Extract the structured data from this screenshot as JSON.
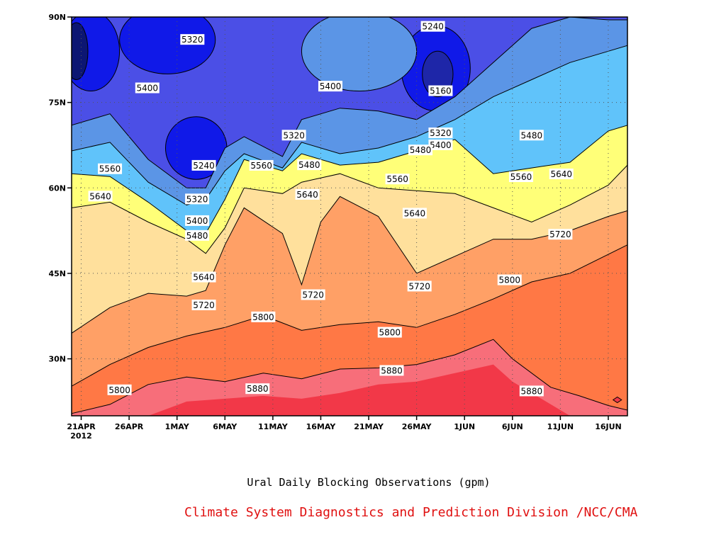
{
  "caption": "Ural Daily Blocking Observations (gpm)",
  "credit": "Climate System Diagnostics and Prediction Division /NCC/CMA",
  "colors": {
    "band_lt5160": "#0c1673",
    "band_5160_5240": "#1e26a8",
    "band_5240_5320": "#1019e8",
    "band_5320_5400": "#4b4fe6",
    "band_5400_5480": "#5b95e6",
    "band_5480_5560": "#60c3fa",
    "band_5560_5640": "#ffff78",
    "band_5640_5720": "#ffe09c",
    "band_5720_5800": "#ffa066",
    "band_5800_5880": "#ff7845",
    "band_5880_5960": "#f76e7a",
    "band_gt5960": "#f23848"
  },
  "chart_data": {
    "type": "heatmap",
    "title": "",
    "xlabel": "",
    "ylabel": "",
    "grid": true,
    "x_ticks": [
      "21APR",
      "26APR",
      "1MAY",
      "6MAY",
      "11MAY",
      "16MAY",
      "21MAY",
      "26MAY",
      "1JUN",
      "6JUN",
      "11JUN",
      "16JUN"
    ],
    "x_year_label": "2012",
    "y_ticks": [
      "30N",
      "45N",
      "60N",
      "75N",
      "90N"
    ],
    "y_range_deg": [
      20,
      90
    ],
    "x_range_days": [
      0,
      58
    ],
    "contour_levels": [
      5160,
      5240,
      5320,
      5400,
      5480,
      5560,
      5640,
      5720,
      5800,
      5880,
      5960
    ],
    "contour_lines": [
      {
        "level": 5880,
        "points": [
          [
            0,
            20.4
          ],
          [
            4,
            22.0
          ],
          [
            8,
            25.5
          ],
          [
            12,
            26.8
          ],
          [
            16,
            26.0
          ],
          [
            20,
            27.5
          ],
          [
            24,
            26.5
          ],
          [
            28,
            28.2
          ],
          [
            32,
            28.4
          ],
          [
            36,
            29.0
          ],
          [
            40,
            30.7
          ],
          [
            44,
            33.4
          ],
          [
            46,
            30.0
          ],
          [
            50,
            25.0
          ],
          [
            53,
            23.5
          ],
          [
            56,
            21.8
          ],
          [
            58,
            21.0
          ]
        ]
      },
      {
        "level": 5800,
        "points": [
          [
            0,
            25.2
          ],
          [
            4,
            29.0
          ],
          [
            8,
            32.0
          ],
          [
            12,
            34.0
          ],
          [
            16,
            35.5
          ],
          [
            20,
            37.6
          ],
          [
            24,
            35.0
          ],
          [
            28,
            36.0
          ],
          [
            32,
            36.5
          ],
          [
            36,
            35.5
          ],
          [
            40,
            37.8
          ],
          [
            44,
            40.5
          ],
          [
            48,
            43.5
          ],
          [
            52,
            45.0
          ],
          [
            55,
            47.5
          ],
          [
            58,
            50.0
          ]
        ]
      },
      {
        "level": 5720,
        "points": [
          [
            0,
            34.5
          ],
          [
            4,
            39.0
          ],
          [
            8,
            41.5
          ],
          [
            12,
            41.0
          ],
          [
            14,
            42.0
          ],
          [
            16,
            50.0
          ],
          [
            18,
            56.5
          ],
          [
            22,
            52.0
          ],
          [
            24,
            43.0
          ],
          [
            26,
            54.0
          ],
          [
            28,
            58.5
          ],
          [
            32,
            55.0
          ],
          [
            36,
            45.0
          ],
          [
            40,
            48.0
          ],
          [
            44,
            51.0
          ],
          [
            48,
            51.0
          ],
          [
            52,
            52.5
          ],
          [
            56,
            55.0
          ],
          [
            58,
            56.0
          ]
        ]
      },
      {
        "level": 5640,
        "points": [
          [
            0,
            56.5
          ],
          [
            4,
            57.5
          ],
          [
            8,
            54.0
          ],
          [
            12,
            51.0
          ],
          [
            14,
            48.5
          ],
          [
            16,
            53.0
          ],
          [
            18,
            60.0
          ],
          [
            22,
            59.0
          ],
          [
            24,
            61.0
          ],
          [
            28,
            62.5
          ],
          [
            32,
            60.0
          ],
          [
            36,
            59.5
          ],
          [
            40,
            59.0
          ],
          [
            44,
            56.5
          ],
          [
            48,
            54.0
          ],
          [
            52,
            57.0
          ],
          [
            56,
            60.5
          ],
          [
            58,
            64.0
          ]
        ]
      },
      {
        "level": 5560,
        "points": [
          [
            0,
            62.5
          ],
          [
            4,
            62.0
          ],
          [
            8,
            57.5
          ],
          [
            12,
            52.5
          ],
          [
            14,
            52.0
          ],
          [
            16,
            58.0
          ],
          [
            18,
            65.0
          ],
          [
            22,
            63.0
          ],
          [
            24,
            66.0
          ],
          [
            28,
            64.0
          ],
          [
            32,
            64.5
          ],
          [
            36,
            66.5
          ],
          [
            40,
            68.5
          ],
          [
            44,
            62.5
          ],
          [
            48,
            63.5
          ],
          [
            52,
            64.5
          ],
          [
            56,
            70.0
          ],
          [
            58,
            71.0
          ]
        ]
      },
      {
        "level": 5480,
        "points": [
          [
            0,
            66.5
          ],
          [
            4,
            68.0
          ],
          [
            8,
            61.0
          ],
          [
            12,
            57.0
          ],
          [
            14,
            58.0
          ],
          [
            16,
            63.0
          ],
          [
            18,
            66.0
          ],
          [
            22,
            63.5
          ],
          [
            24,
            68.0
          ],
          [
            28,
            66.0
          ],
          [
            32,
            67.0
          ],
          [
            36,
            69.0
          ],
          [
            40,
            72.0
          ],
          [
            44,
            76.0
          ],
          [
            48,
            79.0
          ],
          [
            52,
            82.0
          ],
          [
            56,
            84.0
          ],
          [
            58,
            85.0
          ]
        ]
      },
      {
        "level": 5400,
        "points": [
          [
            0,
            71.0
          ],
          [
            4,
            73.0
          ],
          [
            8,
            65.0
          ],
          [
            12,
            60.0
          ],
          [
            14,
            60.0
          ],
          [
            16,
            67.0
          ],
          [
            18,
            69.0
          ],
          [
            22,
            65.5
          ],
          [
            24,
            72.0
          ],
          [
            28,
            74.0
          ],
          [
            32,
            73.5
          ],
          [
            36,
            72.0
          ],
          [
            40,
            76.0
          ],
          [
            44,
            82.0
          ],
          [
            48,
            88.0
          ],
          [
            52,
            90.0
          ],
          [
            56,
            89.5
          ],
          [
            58,
            89.5
          ]
        ]
      }
    ],
    "contour_labels": [
      {
        "text": "5320",
        "x": 12.6,
        "y": 86.0
      },
      {
        "text": "5400",
        "x": 7.9,
        "y": 77.5
      },
      {
        "text": "5240",
        "x": 13.8,
        "y": 63.9
      },
      {
        "text": "5320",
        "x": 13.1,
        "y": 58.0
      },
      {
        "text": "5400",
        "x": 13.1,
        "y": 54.2
      },
      {
        "text": "5480",
        "x": 13.1,
        "y": 51.6
      },
      {
        "text": "5560",
        "x": 4.0,
        "y": 63.3
      },
      {
        "text": "5640",
        "x": 3.0,
        "y": 58.5
      },
      {
        "text": "5640",
        "x": 13.8,
        "y": 44.3
      },
      {
        "text": "5720",
        "x": 13.8,
        "y": 39.4
      },
      {
        "text": "5800",
        "x": 5.0,
        "y": 24.5
      },
      {
        "text": "5880",
        "x": 19.4,
        "y": 24.7
      },
      {
        "text": "5800",
        "x": 20.0,
        "y": 37.3
      },
      {
        "text": "5720",
        "x": 25.2,
        "y": 41.2
      },
      {
        "text": "5560",
        "x": 19.8,
        "y": 63.9
      },
      {
        "text": "5480",
        "x": 24.8,
        "y": 64.0
      },
      {
        "text": "5640",
        "x": 24.6,
        "y": 58.8
      },
      {
        "text": "5320",
        "x": 23.2,
        "y": 69.2
      },
      {
        "text": "5400",
        "x": 27.0,
        "y": 77.8
      },
      {
        "text": "5240",
        "x": 37.7,
        "y": 88.3
      },
      {
        "text": "5160",
        "x": 38.5,
        "y": 77.0
      },
      {
        "text": "5320",
        "x": 38.5,
        "y": 69.6
      },
      {
        "text": "5400",
        "x": 38.5,
        "y": 67.5
      },
      {
        "text": "5480",
        "x": 36.4,
        "y": 66.6
      },
      {
        "text": "5560",
        "x": 34.0,
        "y": 61.5
      },
      {
        "text": "5640",
        "x": 35.8,
        "y": 55.5
      },
      {
        "text": "5720",
        "x": 36.3,
        "y": 42.7
      },
      {
        "text": "5800",
        "x": 33.2,
        "y": 34.6
      },
      {
        "text": "5880",
        "x": 33.4,
        "y": 27.9
      },
      {
        "text": "5480",
        "x": 48.0,
        "y": 69.2
      },
      {
        "text": "5560",
        "x": 46.9,
        "y": 61.9
      },
      {
        "text": "5640",
        "x": 51.1,
        "y": 62.4
      },
      {
        "text": "5720",
        "x": 51.0,
        "y": 51.8
      },
      {
        "text": "5800",
        "x": 45.7,
        "y": 43.8
      },
      {
        "text": "5880",
        "x": 48.0,
        "y": 24.3
      }
    ]
  }
}
